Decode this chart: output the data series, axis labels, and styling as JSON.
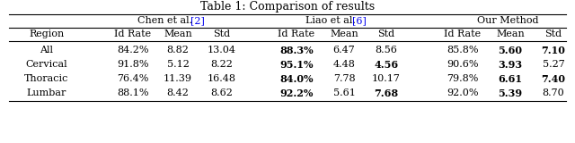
{
  "title": "Table 1: Comparison of results",
  "rows": [
    {
      "label": "All",
      "chen": [
        "84.2%",
        "8.82",
        "13.04"
      ],
      "liao": [
        "88.3%",
        "6.47",
        "8.56"
      ],
      "ours": [
        "85.8%",
        "5.60",
        "7.10"
      ],
      "chen_bold": [
        false,
        false,
        false
      ],
      "liao_bold": [
        true,
        false,
        false
      ],
      "ours_bold": [
        false,
        true,
        true
      ]
    },
    {
      "label": "Cervical",
      "chen": [
        "91.8%",
        "5.12",
        "8.22"
      ],
      "liao": [
        "95.1%",
        "4.48",
        "4.56"
      ],
      "ours": [
        "90.6%",
        "3.93",
        "5.27"
      ],
      "chen_bold": [
        false,
        false,
        false
      ],
      "liao_bold": [
        true,
        false,
        true
      ],
      "ours_bold": [
        false,
        true,
        false
      ]
    },
    {
      "label": "Thoracic",
      "chen": [
        "76.4%",
        "11.39",
        "16.48"
      ],
      "liao": [
        "84.0%",
        "7.78",
        "10.17"
      ],
      "ours": [
        "79.8%",
        "6.61",
        "7.40"
      ],
      "chen_bold": [
        false,
        false,
        false
      ],
      "liao_bold": [
        true,
        false,
        false
      ],
      "ours_bold": [
        false,
        true,
        true
      ]
    },
    {
      "label": "Lumbar",
      "chen": [
        "88.1%",
        "8.42",
        "8.62"
      ],
      "liao": [
        "92.2%",
        "5.61",
        "7.68"
      ],
      "ours": [
        "92.0%",
        "5.39",
        "8.70"
      ],
      "chen_bold": [
        false,
        false,
        false
      ],
      "liao_bold": [
        true,
        false,
        true
      ],
      "ours_bold": [
        false,
        true,
        false
      ]
    }
  ],
  "bg_color": "#ffffff",
  "text_color": "#000000",
  "blue_color": "#0000ee",
  "font_size": 8.0,
  "title_font_size": 9.0
}
